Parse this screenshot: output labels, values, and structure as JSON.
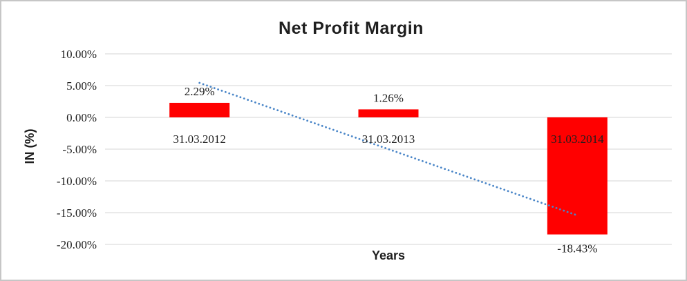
{
  "chart_data": {
    "type": "bar",
    "title": "Net Profit Margin",
    "xlabel": "Years",
    "ylabel": "IN (%)",
    "categories": [
      "31.03.2012",
      "31.03.2013",
      "31.03.2014"
    ],
    "series": [
      {
        "name": "Net Profit Margin",
        "color": "#FF0000",
        "values": [
          2.29,
          1.26,
          -18.43
        ]
      }
    ],
    "data_labels": [
      "2.29%",
      "1.26%",
      "-18.43%"
    ],
    "yticks": {
      "values": [
        10,
        5,
        0,
        -5,
        -10,
        -15,
        -20
      ],
      "labels": [
        "10.00%",
        "5.00%",
        "0.00%",
        "-5.00%",
        "-10.00%",
        "-15.00%",
        "-20.00%"
      ]
    },
    "ylim": [
      -20,
      10
    ],
    "grid": true,
    "legend": "none",
    "trendline": {
      "style": "dotted",
      "color": "#4A86C8",
      "from_category": 0,
      "to_category": 2,
      "start_value": 5.43,
      "end_value": -15.43
    },
    "colors": {
      "title": "#3F3F3F",
      "axis_title": "#3F3F3F",
      "tick_label": "#1F1F1F",
      "gridline": "#D6D6D6",
      "bar": "#FF0000",
      "background": "#FFFFFF",
      "border": "#C6C6C6"
    }
  }
}
